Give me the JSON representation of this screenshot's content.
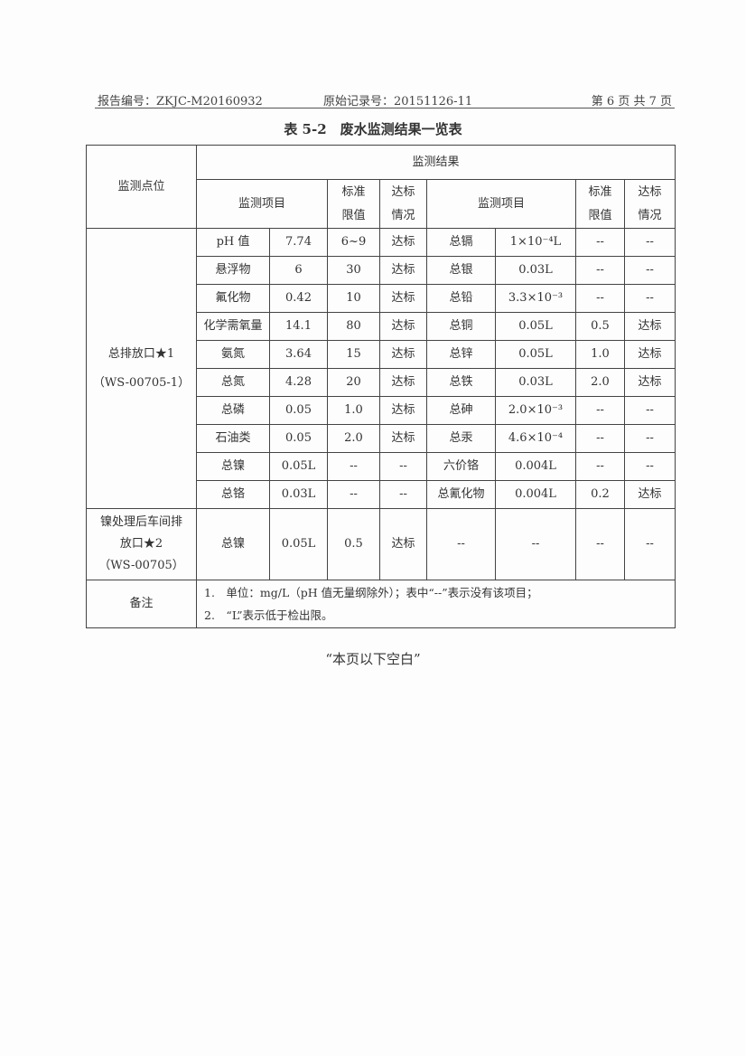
{
  "header": {
    "report_no": "报告编号：ZKJC-M20160932",
    "record_no": "原始记录号：20151126-11",
    "page": "第 6 页 共 7 页"
  },
  "title": "表 5-2　废水监测结果一览表",
  "table": {
    "head": {
      "point": "监测点位",
      "results": "监测结果",
      "item": "监测项目",
      "limit": "标准限值",
      "status": "达标情况"
    },
    "site1": {
      "name": "总排放口★1",
      "code": "（WS-00705-1）"
    },
    "rows": [
      [
        "pH 值",
        "7.74",
        "6~9",
        "达标",
        "总镉",
        "1×10⁻⁴L",
        "--",
        "--"
      ],
      [
        "悬浮物",
        "6",
        "30",
        "达标",
        "总银",
        "0.03L",
        "--",
        "--"
      ],
      [
        "氟化物",
        "0.42",
        "10",
        "达标",
        "总铅",
        "3.3×10⁻³",
        "--",
        "--"
      ],
      [
        "化学需氧量",
        "14.1",
        "80",
        "达标",
        "总铜",
        "0.05L",
        "0.5",
        "达标"
      ],
      [
        "氨氮",
        "3.64",
        "15",
        "达标",
        "总锌",
        "0.05L",
        "1.0",
        "达标"
      ],
      [
        "总氮",
        "4.28",
        "20",
        "达标",
        "总铁",
        "0.03L",
        "2.0",
        "达标"
      ],
      [
        "总磷",
        "0.05",
        "1.0",
        "达标",
        "总砷",
        "2.0×10⁻³",
        "--",
        "--"
      ],
      [
        "石油类",
        "0.05",
        "2.0",
        "达标",
        "总汞",
        "4.6×10⁻⁴",
        "--",
        "--"
      ],
      [
        "总镍",
        "0.05L",
        "--",
        "--",
        "六价铬",
        "0.004L",
        "--",
        "--"
      ],
      [
        "总铬",
        "0.03L",
        "--",
        "--",
        "总氰化物",
        "0.004L",
        "0.2",
        "达标"
      ]
    ],
    "site2": {
      "name1": "镍处理后车间排",
      "name2": "放口★2",
      "code": "（WS-00705）",
      "row": [
        "总镍",
        "0.05L",
        "0.5",
        "达标",
        "--",
        "--",
        "--",
        "--"
      ]
    },
    "notes_label": "备注",
    "notes": [
      "1.　单位：mg/L（pH 值无量纲除外）；表中“--”表示没有该项目；",
      "2.　“L”表示低于检出限。"
    ]
  },
  "footer": "“本页以下空白”"
}
